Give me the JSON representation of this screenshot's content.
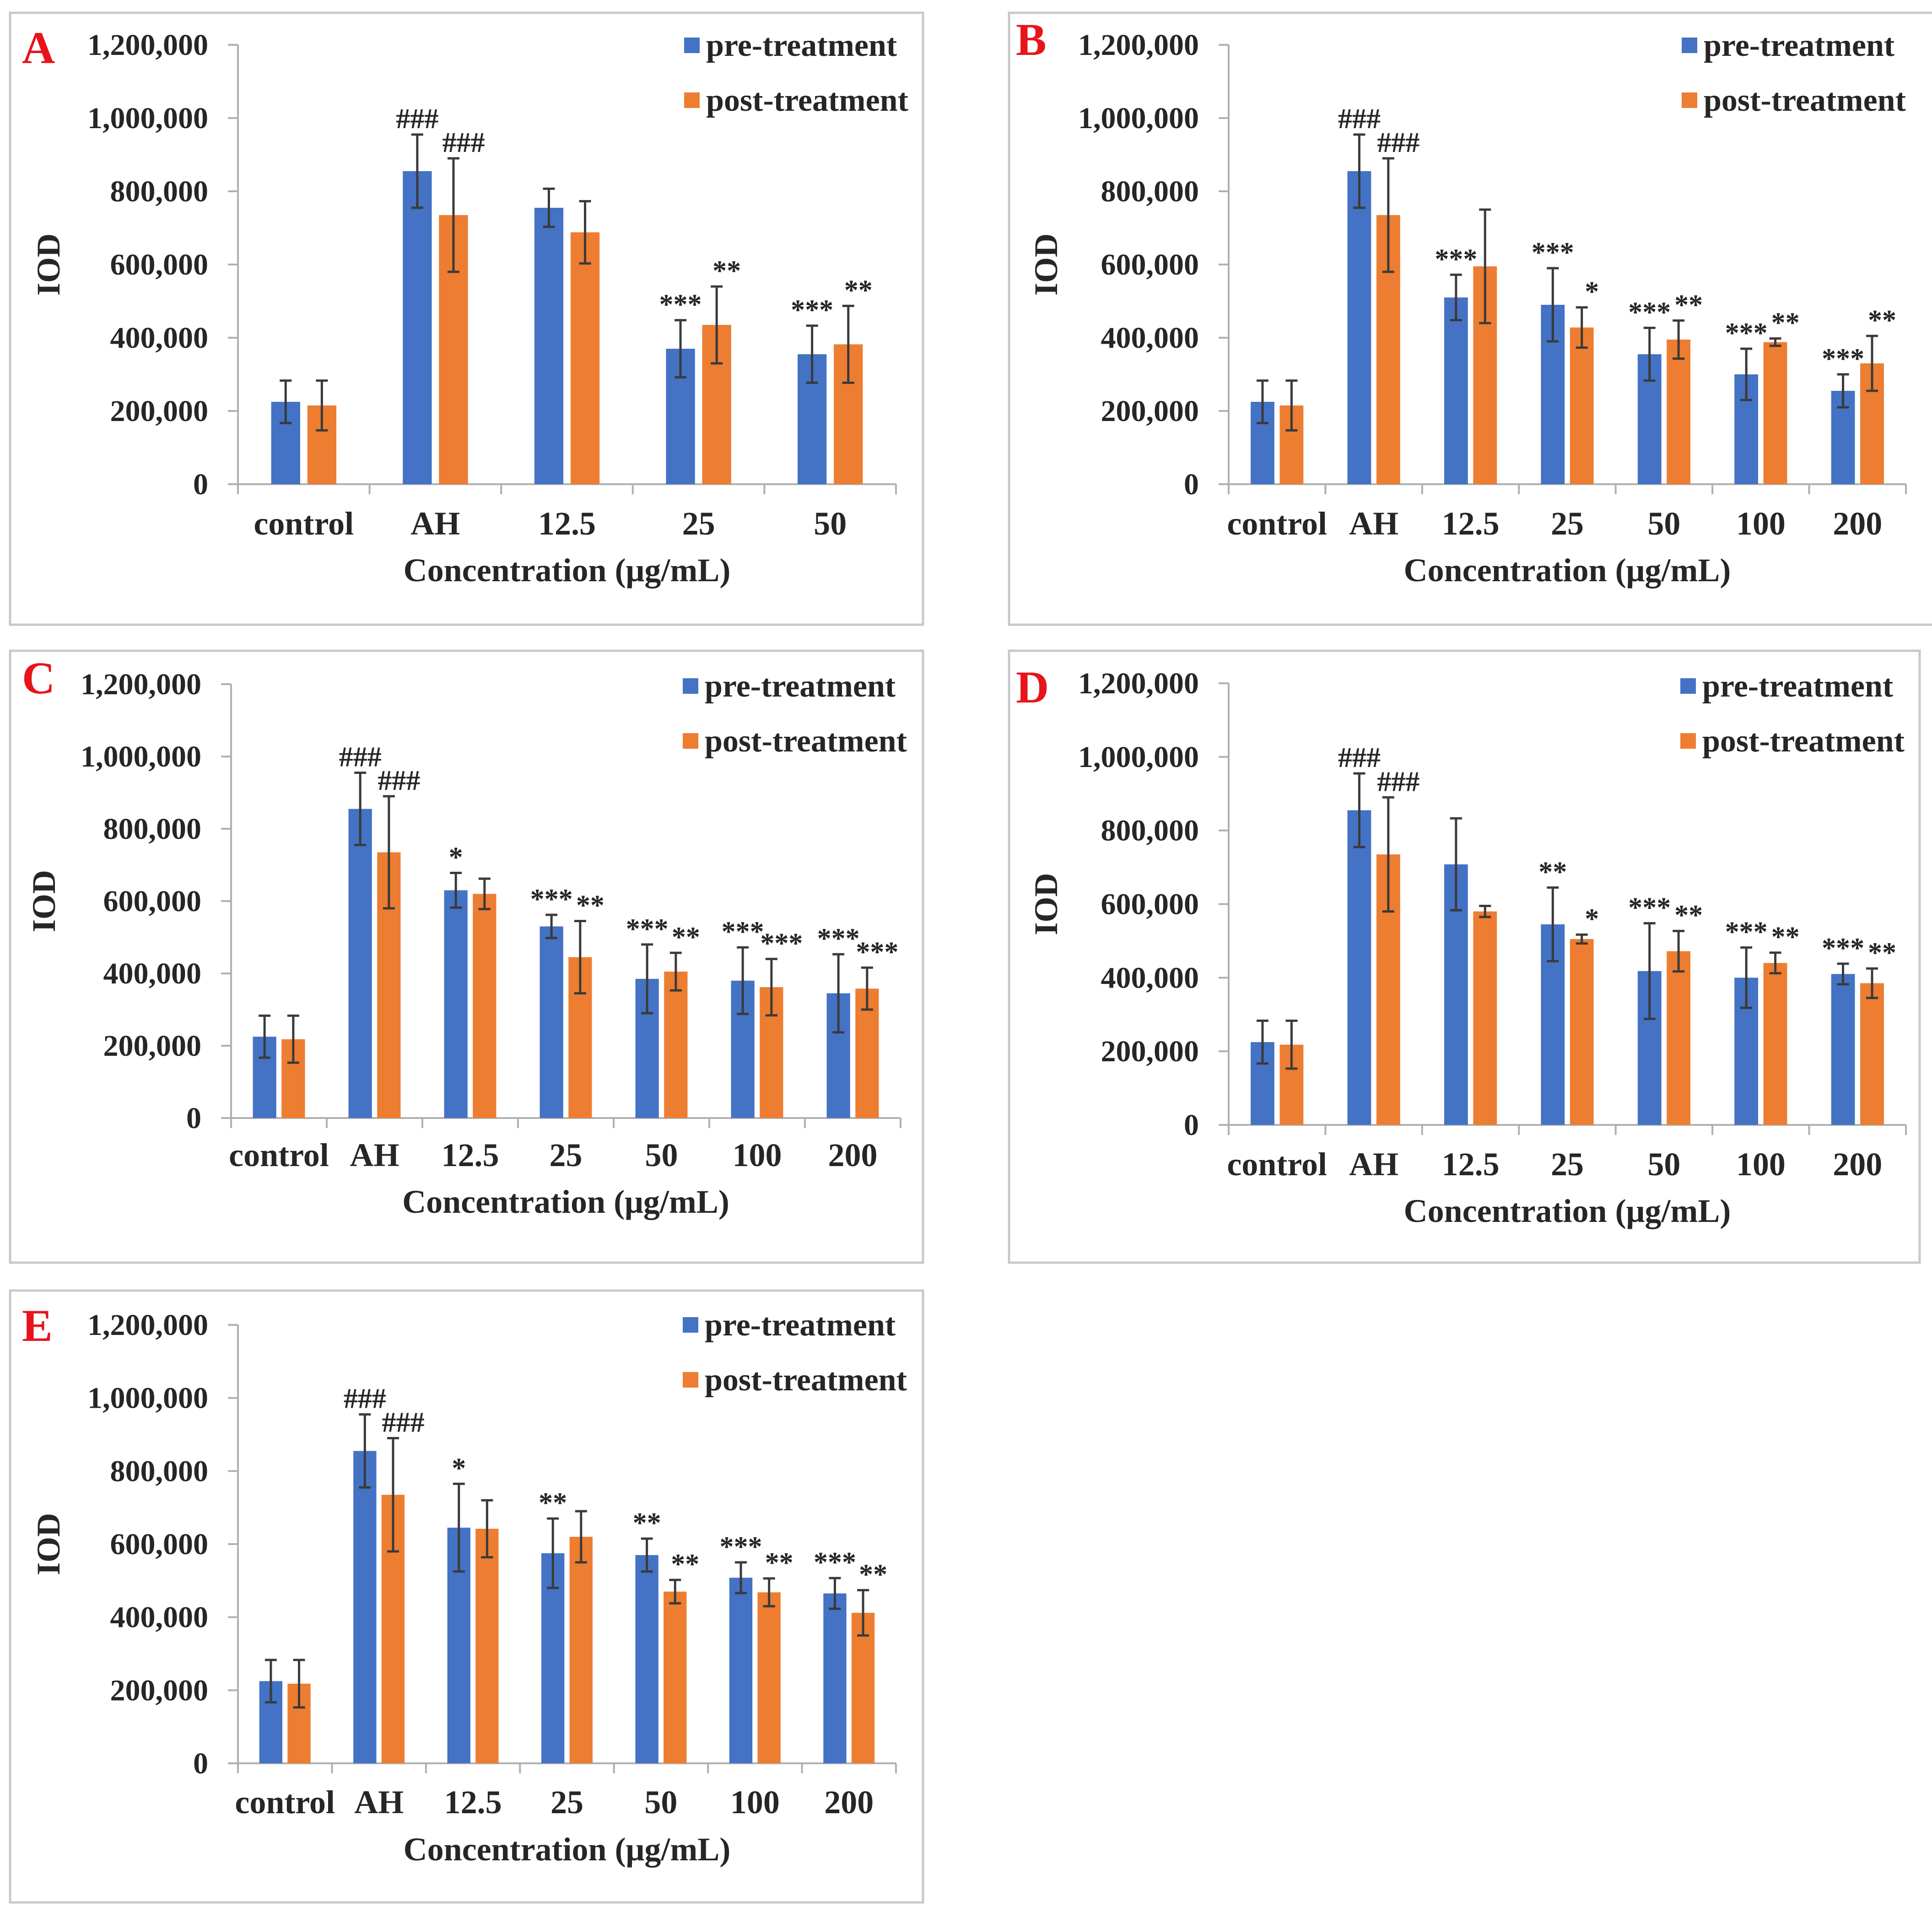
{
  "colors": {
    "pre": "#4472c4",
    "post": "#ed7d31",
    "panel_letter": "#e8141b",
    "error": "#3a3a3a",
    "axis": "#b0b0b0",
    "frame": "#c8c8c8"
  },
  "legend": {
    "pre": "pre-treatment",
    "post": "post-treatment"
  },
  "chart_data": [
    {
      "type": "bar",
      "panel": "A",
      "categories": [
        "control",
        "AH",
        "12.5",
        "25",
        "50"
      ],
      "xlabel": "Concentration (μg/mL)",
      "ylabel": "IOD",
      "ylim": [
        0,
        1200000
      ],
      "yticks": [
        "0",
        "200,000",
        "400,000",
        "600,000",
        "800,000",
        "1,000,000",
        "1,200,000"
      ],
      "series": [
        {
          "name": "pre-treatment",
          "values": [
            225000,
            855000,
            755000,
            370000,
            355000
          ],
          "errors": [
            58000,
            100000,
            52000,
            78000,
            78000
          ],
          "sig": [
            "",
            "###",
            "",
            "***",
            "***"
          ]
        },
        {
          "name": "post-treatment",
          "values": [
            215000,
            735000,
            688000,
            435000,
            382000
          ],
          "errors": [
            68000,
            155000,
            85000,
            105000,
            105000
          ],
          "sig": [
            "",
            "###",
            "",
            "**",
            "**"
          ]
        }
      ]
    },
    {
      "type": "bar",
      "panel": "B",
      "categories": [
        "control",
        "AH",
        "12.5",
        "25",
        "50",
        "100",
        "200"
      ],
      "xlabel": "Concentration (μg/mL)",
      "ylabel": "IOD",
      "ylim": [
        0,
        1200000
      ],
      "yticks": [
        "0",
        "200,000",
        "400,000",
        "600,000",
        "800,000",
        "1,000,000",
        "1,200,000"
      ],
      "series": [
        {
          "name": "pre-treatment",
          "values": [
            225000,
            855000,
            510000,
            490000,
            355000,
            300000,
            255000
          ],
          "errors": [
            58000,
            100000,
            62000,
            100000,
            72000,
            70000,
            45000
          ],
          "sig": [
            "",
            "###",
            "***",
            "***",
            "***",
            "***",
            "***"
          ]
        },
        {
          "name": "post-treatment",
          "values": [
            215000,
            735000,
            595000,
            428000,
            395000,
            388000,
            330000
          ],
          "errors": [
            68000,
            155000,
            155000,
            55000,
            52000,
            10000,
            75000
          ],
          "sig": [
            "",
            "###",
            "",
            "*",
            "**",
            "**",
            "**"
          ]
        }
      ]
    },
    {
      "type": "bar",
      "panel": "C",
      "categories": [
        "control",
        "AH",
        "12.5",
        "25",
        "50",
        "100",
        "200"
      ],
      "xlabel": "Concentration (μg/mL)",
      "ylabel": "IOD",
      "ylim": [
        0,
        1200000
      ],
      "yticks": [
        "0",
        "200,000",
        "400,000",
        "600,000",
        "800,000",
        "1,000,000",
        "1,200,000"
      ],
      "series": [
        {
          "name": "pre-treatment",
          "values": [
            225000,
            855000,
            630000,
            530000,
            385000,
            380000,
            345000
          ],
          "errors": [
            58000,
            100000,
            48000,
            32000,
            95000,
            92000,
            108000
          ],
          "sig": [
            "",
            "###",
            "*",
            "***",
            "***",
            "***",
            "***"
          ]
        },
        {
          "name": "post-treatment",
          "values": [
            218000,
            735000,
            620000,
            445000,
            405000,
            362000,
            358000
          ],
          "errors": [
            65000,
            155000,
            42000,
            100000,
            52000,
            78000,
            58000
          ],
          "sig": [
            "",
            "###",
            "",
            "**",
            "**",
            "***",
            "***"
          ]
        }
      ]
    },
    {
      "type": "bar",
      "panel": "D",
      "categories": [
        "control",
        "AH",
        "12.5",
        "25",
        "50",
        "100",
        "200"
      ],
      "xlabel": "Concentration (μg/mL)",
      "ylabel": "IOD",
      "ylim": [
        0,
        1200000
      ],
      "yticks": [
        "0",
        "200,000",
        "400,000",
        "600,000",
        "800,000",
        "1,000,000",
        "1,200,000"
      ],
      "series": [
        {
          "name": "pre-treatment",
          "values": [
            225000,
            855000,
            708000,
            545000,
            418000,
            400000,
            410000
          ],
          "errors": [
            58000,
            100000,
            125000,
            100000,
            130000,
            82000,
            28000
          ],
          "sig": [
            "",
            "###",
            "",
            "**",
            "***",
            "***",
            "***"
          ]
        },
        {
          "name": "post-treatment",
          "values": [
            218000,
            735000,
            580000,
            505000,
            472000,
            440000,
            385000
          ],
          "errors": [
            65000,
            155000,
            15000,
            12000,
            55000,
            28000,
            40000
          ],
          "sig": [
            "",
            "###",
            "",
            "*",
            "**",
            "**",
            "**"
          ]
        }
      ]
    },
    {
      "type": "bar",
      "panel": "E",
      "categories": [
        "control",
        "AH",
        "12.5",
        "25",
        "50",
        "100",
        "200"
      ],
      "xlabel": "Concentration (μg/mL)",
      "ylabel": "IOD",
      "ylim": [
        0,
        1200000
      ],
      "yticks": [
        "0",
        "200,000",
        "400,000",
        "600,000",
        "800,000",
        "1,000,000",
        "1,200,000"
      ],
      "series": [
        {
          "name": "pre-treatment",
          "values": [
            225000,
            855000,
            645000,
            575000,
            570000,
            508000,
            465000
          ],
          "errors": [
            58000,
            100000,
            120000,
            95000,
            45000,
            42000,
            42000
          ],
          "sig": [
            "",
            "###",
            "*",
            "**",
            "**",
            "***",
            "***"
          ]
        },
        {
          "name": "post-treatment",
          "values": [
            218000,
            735000,
            642000,
            620000,
            470000,
            468000,
            412000
          ],
          "errors": [
            65000,
            155000,
            78000,
            70000,
            32000,
            38000,
            62000
          ],
          "sig": [
            "",
            "###",
            "",
            "",
            "**",
            "**",
            "**"
          ]
        }
      ]
    }
  ]
}
